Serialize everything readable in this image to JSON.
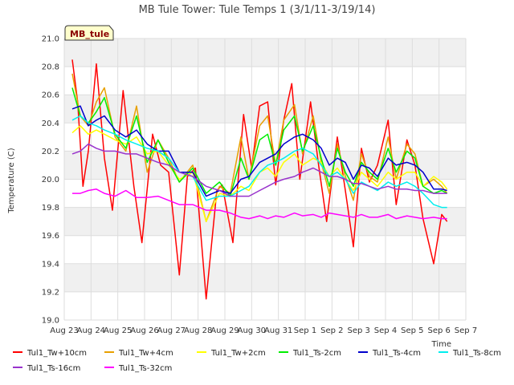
{
  "chart_data": {
    "type": "line",
    "title": "MB Tule Tower: Tule Temps 1 (3/1/11-3/19/14)",
    "site_badge": "MB_tule",
    "xlabel": "Time",
    "ylabel": "Temperature (C)",
    "ylim": [
      19.0,
      21.0
    ],
    "yticks": [
      "19.0",
      "19.2",
      "19.4",
      "19.6",
      "19.8",
      "20.0",
      "20.2",
      "20.4",
      "20.6",
      "20.8",
      "21.0"
    ],
    "xlim": [
      0,
      15
    ],
    "xticks": [
      "Aug 23",
      "Aug 24",
      "Aug 25",
      "Aug 26",
      "Aug 27",
      "Aug 28",
      "Aug 29",
      "Aug 30",
      "Aug 31",
      "Sep 1",
      "Sep 2",
      "Sep 3",
      "Sep 4",
      "Sep 5",
      "Sep 6",
      "Sep 7"
    ],
    "series": [
      {
        "name": "Tul1_Tw+10cm",
        "color": "#ff0000",
        "x": [
          0.3,
          0.5,
          0.7,
          0.9,
          1.2,
          1.5,
          1.8,
          2.2,
          2.6,
          2.9,
          3.3,
          3.6,
          3.9,
          4.3,
          4.6,
          4.9,
          5.3,
          5.7,
          5.9,
          6.3,
          6.7,
          7.0,
          7.3,
          7.6,
          7.9,
          8.2,
          8.5,
          8.8,
          9.2,
          9.5,
          9.8,
          10.2,
          10.5,
          10.8,
          11.1,
          11.4,
          11.7,
          12.1,
          12.4,
          12.8,
          13.1,
          13.4,
          13.8,
          14.1,
          14.3
        ],
        "values": [
          20.85,
          20.55,
          19.95,
          20.2,
          20.82,
          20.15,
          19.78,
          20.63,
          19.95,
          19.55,
          20.32,
          20.1,
          20.05,
          19.32,
          20.02,
          20.08,
          19.15,
          19.92,
          19.96,
          19.55,
          20.46,
          20.08,
          20.52,
          20.55,
          19.96,
          20.42,
          20.68,
          20.0,
          20.55,
          20.1,
          19.7,
          20.3,
          19.92,
          19.52,
          20.22,
          19.98,
          20.1,
          20.42,
          19.82,
          20.28,
          20.1,
          19.72,
          19.4,
          19.75,
          19.7
        ]
      },
      {
        "name": "Tul1_Tw+4cm",
        "color": "#e8a000",
        "x": [
          0.3,
          0.6,
          0.9,
          1.2,
          1.5,
          1.9,
          2.3,
          2.7,
          3.1,
          3.5,
          3.9,
          4.3,
          4.8,
          5.3,
          5.8,
          6.2,
          6.6,
          6.9,
          7.3,
          7.6,
          7.9,
          8.2,
          8.6,
          8.9,
          9.3,
          9.6,
          9.9,
          10.2,
          10.5,
          10.8,
          11.1,
          11.4,
          11.7,
          12.1,
          12.4,
          12.8,
          13.1,
          13.4,
          13.8,
          14.1,
          14.3
        ],
        "values": [
          20.75,
          20.45,
          20.38,
          20.55,
          20.65,
          20.3,
          20.2,
          20.52,
          20.05,
          20.28,
          20.15,
          19.98,
          20.1,
          19.7,
          19.95,
          19.9,
          20.3,
          20.0,
          20.38,
          20.45,
          20.1,
          20.42,
          20.53,
          20.18,
          20.45,
          20.12,
          19.9,
          20.25,
          20.02,
          19.85,
          20.18,
          20.02,
          19.98,
          20.3,
          20.0,
          20.25,
          20.18,
          19.95,
          20.0,
          19.95,
          19.9
        ]
      },
      {
        "name": "Tul1_Tw+2cm",
        "color": "#ffff00",
        "x": [
          0.3,
          0.6,
          0.9,
          1.2,
          1.5,
          1.9,
          2.3,
          2.7,
          3.1,
          3.5,
          3.9,
          4.3,
          4.8,
          5.3,
          5.8,
          6.2,
          6.6,
          6.9,
          7.3,
          7.6,
          7.9,
          8.2,
          8.6,
          8.9,
          9.3,
          9.6,
          9.9,
          10.2,
          10.5,
          10.8,
          11.1,
          11.4,
          11.7,
          12.1,
          12.4,
          12.8,
          13.1,
          13.4,
          13.8,
          14.1,
          14.3
        ],
        "values": [
          20.33,
          20.38,
          20.32,
          20.35,
          20.32,
          20.28,
          20.25,
          20.3,
          20.18,
          20.2,
          20.1,
          20.0,
          20.05,
          19.7,
          19.9,
          19.88,
          19.95,
          19.92,
          20.05,
          20.08,
          20.02,
          20.12,
          20.18,
          20.1,
          20.15,
          20.12,
          20.02,
          20.08,
          20.0,
          19.92,
          20.05,
          20.0,
          19.95,
          20.05,
          20.0,
          20.05,
          20.05,
          19.95,
          20.02,
          19.98,
          19.93
        ]
      },
      {
        "name": "Tul1_Ts-2cm",
        "color": "#00ee00",
        "x": [
          0.3,
          0.6,
          0.9,
          1.2,
          1.5,
          1.9,
          2.3,
          2.7,
          3.1,
          3.5,
          3.9,
          4.3,
          4.8,
          5.3,
          5.8,
          6.2,
          6.6,
          6.9,
          7.3,
          7.6,
          7.9,
          8.2,
          8.6,
          8.9,
          9.3,
          9.6,
          9.9,
          10.2,
          10.5,
          10.8,
          11.1,
          11.4,
          11.7,
          12.1,
          12.4,
          12.8,
          13.1,
          13.4,
          13.8,
          14.1,
          14.3
        ],
        "values": [
          20.65,
          20.45,
          20.4,
          20.48,
          20.58,
          20.32,
          20.22,
          20.45,
          20.12,
          20.28,
          20.12,
          19.98,
          20.08,
          19.9,
          19.98,
          19.88,
          20.15,
          20.0,
          20.28,
          20.32,
          20.1,
          20.35,
          20.45,
          20.2,
          20.38,
          20.15,
          19.95,
          20.22,
          20.05,
          19.95,
          20.12,
          20.05,
          20.0,
          20.22,
          20.05,
          20.2,
          20.15,
          19.95,
          19.9,
          19.92,
          19.9
        ]
      },
      {
        "name": "Tul1_Ts-4cm",
        "color": "#0000cc",
        "x": [
          0.3,
          0.6,
          0.9,
          1.2,
          1.5,
          1.9,
          2.3,
          2.7,
          3.1,
          3.5,
          3.9,
          4.3,
          4.8,
          5.3,
          5.8,
          6.2,
          6.6,
          6.9,
          7.3,
          7.6,
          7.9,
          8.2,
          8.6,
          8.9,
          9.3,
          9.6,
          9.9,
          10.2,
          10.5,
          10.8,
          11.1,
          11.4,
          11.7,
          12.1,
          12.4,
          12.8,
          13.1,
          13.4,
          13.8,
          14.1,
          14.3
        ],
        "values": [
          20.5,
          20.52,
          20.38,
          20.42,
          20.45,
          20.35,
          20.3,
          20.35,
          20.25,
          20.2,
          20.2,
          20.05,
          20.05,
          19.88,
          19.92,
          19.9,
          20.0,
          20.02,
          20.12,
          20.15,
          20.18,
          20.25,
          20.3,
          20.32,
          20.28,
          20.22,
          20.1,
          20.15,
          20.12,
          20.0,
          20.1,
          20.08,
          20.02,
          20.15,
          20.1,
          20.12,
          20.1,
          20.05,
          19.93,
          19.93,
          19.92
        ]
      },
      {
        "name": "Tul1_Ts-8cm",
        "color": "#00eeee",
        "x": [
          0.3,
          0.6,
          0.9,
          1.2,
          1.5,
          1.9,
          2.3,
          2.7,
          3.1,
          3.5,
          3.9,
          4.3,
          4.8,
          5.3,
          5.8,
          6.2,
          6.6,
          6.9,
          7.3,
          7.6,
          7.9,
          8.2,
          8.6,
          8.9,
          9.3,
          9.6,
          9.9,
          10.2,
          10.5,
          10.8,
          11.1,
          11.4,
          11.7,
          12.1,
          12.4,
          12.8,
          13.1,
          13.4,
          13.8,
          14.1,
          14.3
        ],
        "values": [
          20.42,
          20.45,
          20.4,
          20.38,
          20.35,
          20.32,
          20.28,
          20.25,
          20.22,
          20.2,
          20.15,
          20.05,
          20.02,
          19.85,
          19.88,
          19.88,
          19.92,
          19.95,
          20.05,
          20.1,
          20.12,
          20.15,
          20.2,
          20.22,
          20.18,
          20.1,
          20.02,
          20.05,
          20.0,
          19.9,
          19.98,
          19.95,
          19.92,
          19.98,
          19.95,
          19.98,
          19.95,
          19.9,
          19.82,
          19.8,
          19.8
        ]
      },
      {
        "name": "Tul1_Ts-16cm",
        "color": "#9933cc",
        "x": [
          0.3,
          0.6,
          0.9,
          1.2,
          1.5,
          1.9,
          2.3,
          2.7,
          3.1,
          3.5,
          3.9,
          4.3,
          4.8,
          5.3,
          5.8,
          6.2,
          6.6,
          6.9,
          7.3,
          7.6,
          7.9,
          8.2,
          8.6,
          8.9,
          9.3,
          9.6,
          9.9,
          10.2,
          10.5,
          10.8,
          11.1,
          11.4,
          11.7,
          12.1,
          12.4,
          12.8,
          13.1,
          13.4,
          13.8,
          14.1,
          14.3
        ],
        "values": [
          20.18,
          20.2,
          20.25,
          20.22,
          20.2,
          20.2,
          20.18,
          20.18,
          20.15,
          20.12,
          20.1,
          20.05,
          20.02,
          19.95,
          19.92,
          19.88,
          19.88,
          19.88,
          19.92,
          19.95,
          19.98,
          20.0,
          20.02,
          20.05,
          20.08,
          20.05,
          20.02,
          20.02,
          20.0,
          19.97,
          19.97,
          19.95,
          19.93,
          19.95,
          19.93,
          19.93,
          19.92,
          19.92,
          19.9,
          19.9,
          19.9
        ]
      },
      {
        "name": "Tul1_Ts-32cm",
        "color": "#ff00ff",
        "x": [
          0.3,
          0.6,
          0.9,
          1.2,
          1.5,
          1.9,
          2.3,
          2.7,
          3.1,
          3.5,
          3.9,
          4.3,
          4.8,
          5.3,
          5.8,
          6.2,
          6.6,
          6.9,
          7.3,
          7.6,
          7.9,
          8.2,
          8.6,
          8.9,
          9.3,
          9.6,
          9.9,
          10.2,
          10.5,
          10.8,
          11.1,
          11.4,
          11.7,
          12.1,
          12.4,
          12.8,
          13.1,
          13.4,
          13.8,
          14.1,
          14.3
        ],
        "values": [
          19.9,
          19.9,
          19.92,
          19.93,
          19.9,
          19.88,
          19.92,
          19.87,
          19.87,
          19.88,
          19.85,
          19.82,
          19.82,
          19.78,
          19.78,
          19.76,
          19.73,
          19.72,
          19.74,
          19.72,
          19.74,
          19.73,
          19.76,
          19.74,
          19.75,
          19.73,
          19.76,
          19.75,
          19.74,
          19.73,
          19.75,
          19.73,
          19.73,
          19.75,
          19.72,
          19.74,
          19.73,
          19.72,
          19.73,
          19.72,
          19.72
        ]
      }
    ],
    "legend_position": "bottom"
  }
}
